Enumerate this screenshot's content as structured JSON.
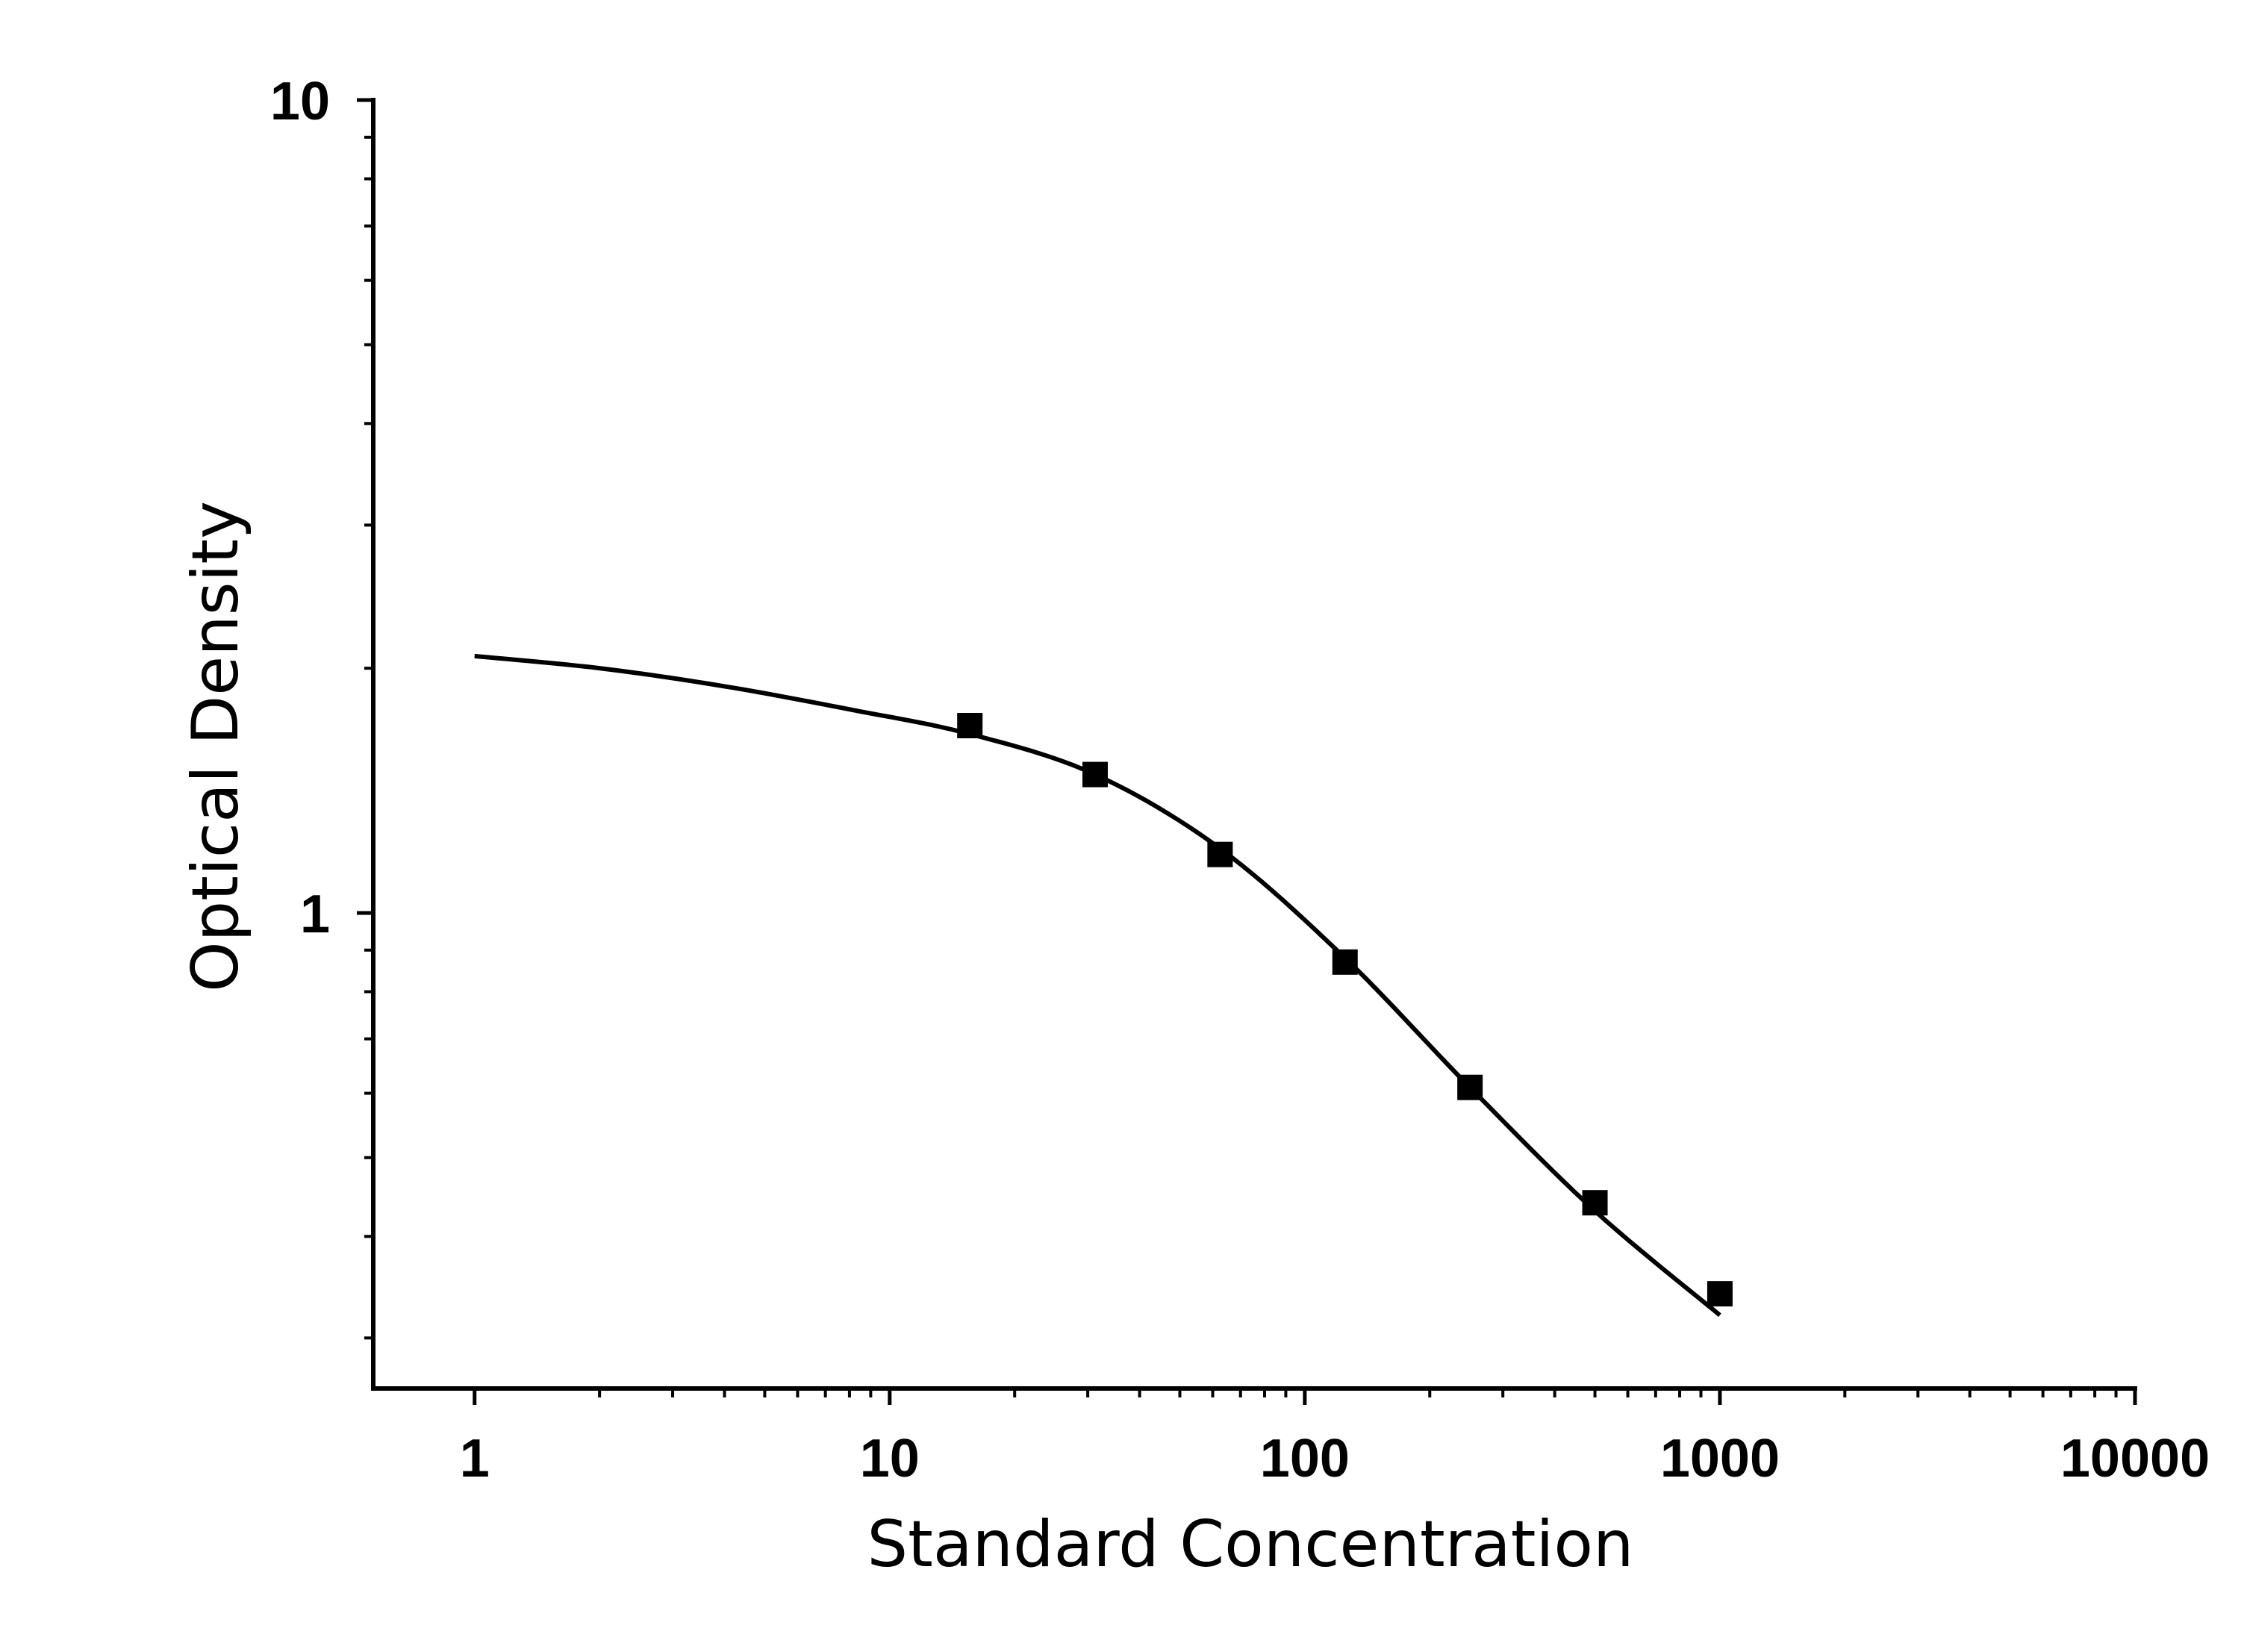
{
  "chart_data": {
    "type": "scatter",
    "xlabel": "Standard Concentration",
    "ylabel": "Optical Density",
    "x_scale": "log",
    "y_scale": "log",
    "xlim": [
      0.57,
      10000
    ],
    "ylim": [
      0.26,
      10
    ],
    "x_ticks": [
      1,
      10,
      100,
      1000,
      10000
    ],
    "x_tick_labels": [
      "1",
      "10",
      "100",
      "1000",
      "10000"
    ],
    "y_ticks": [
      1,
      10
    ],
    "y_tick_labels": [
      "1",
      "10"
    ],
    "grid": false,
    "legend": "none",
    "marker": "filled-square",
    "series": [
      {
        "points": {
          "x": [
            15.6,
            31.25,
            62.5,
            125,
            250,
            500,
            1000
          ],
          "y": [
            1.7,
            1.48,
            1.18,
            0.87,
            0.61,
            0.44,
            0.34
          ]
        },
        "fit_curve": {
          "x": [
            1,
            2,
            4,
            8,
            15.6,
            31.25,
            62.5,
            125,
            250,
            500,
            1000
          ],
          "y": [
            2.07,
            2.0,
            1.9,
            1.78,
            1.66,
            1.48,
            1.2,
            0.88,
            0.61,
            0.43,
            0.32
          ]
        }
      }
    ],
    "colors": {
      "axis": "#000000",
      "marker": "#000000",
      "curve": "#000000",
      "background": "#ffffff"
    }
  }
}
